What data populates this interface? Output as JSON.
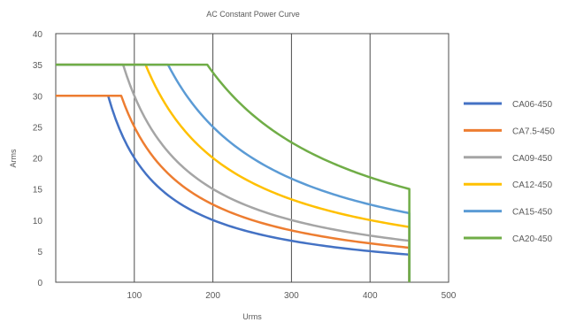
{
  "chart_data": {
    "type": "line",
    "title": "AC Constant Power Curve",
    "xlabel": "Urms",
    "ylabel": "Arms",
    "xlim": [
      0,
      500
    ],
    "ylim": [
      0,
      40
    ],
    "x_ticks": [
      100,
      200,
      300,
      400,
      500
    ],
    "y_ticks": [
      0,
      5,
      10,
      15,
      20,
      25,
      30,
      35,
      40
    ],
    "grid": "x-major-vertical-only",
    "legend_position": "right",
    "series": [
      {
        "name": "CA06-450",
        "color": "#4472C4",
        "current_limit": 30,
        "power_va": 2000,
        "voltage_start": 0,
        "voltage_end": 450
      },
      {
        "name": "CA7.5-450",
        "color": "#ED7D31",
        "current_limit": 30,
        "power_va": 2500,
        "voltage_start": 0,
        "voltage_end": 450
      },
      {
        "name": "CA09-450",
        "color": "#A5A5A5",
        "current_limit": 35,
        "power_va": 3000,
        "voltage_start": 0,
        "voltage_end": 450
      },
      {
        "name": "CA12-450",
        "color": "#FFC000",
        "current_limit": 35,
        "power_va": 4000,
        "voltage_start": 0,
        "voltage_end": 450
      },
      {
        "name": "CA15-450",
        "color": "#5B9BD5",
        "current_limit": 35,
        "power_va": 5000,
        "voltage_start": 0,
        "voltage_end": 450
      },
      {
        "name": "CA20-450",
        "color": "#70AD47",
        "current_limit": 35,
        "power_va": 6750,
        "voltage_start": 0,
        "voltage_end": 450
      }
    ]
  }
}
